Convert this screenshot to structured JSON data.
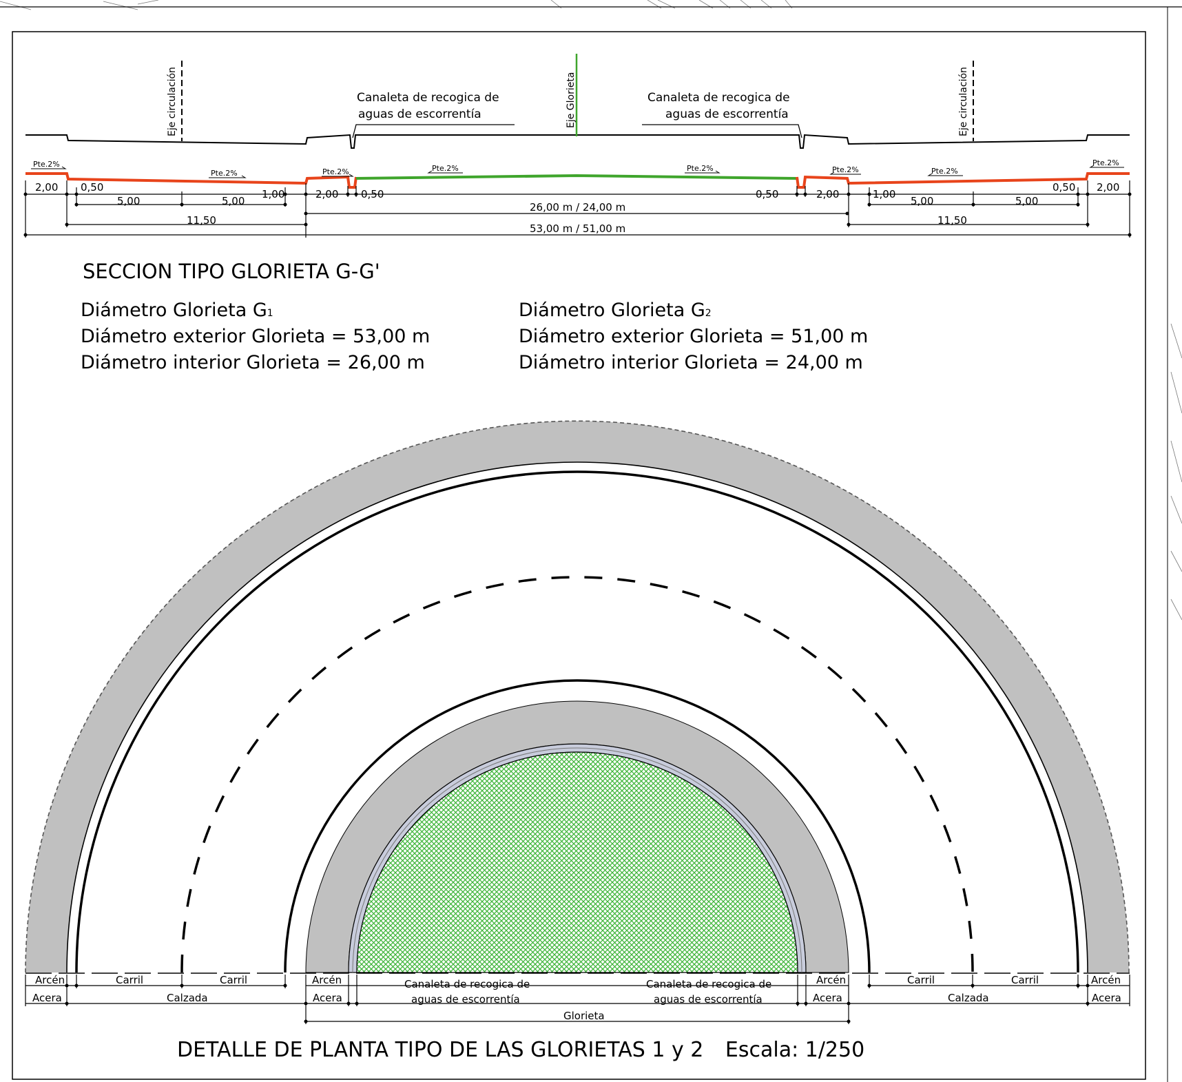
{
  "section": {
    "title": "SECCION TIPO GLORIETA G-G'",
    "labels": {
      "eje_circulacion_left": "Eje circulación",
      "eje_circulacion_right": "Eje circulación",
      "eje_glorieta": "Eje Glorieta",
      "canaleta_left_1": "Canaleta de recogica de",
      "canaleta_left_2": "aguas de escorrentía",
      "canaleta_right_1": "Canaleta de recogica de",
      "canaleta_right_2": "aguas de escorrentía"
    },
    "slope": "Pte.2%",
    "dims": {
      "d_2_00": "2,00",
      "d_0_50": "0,50",
      "d_5_00": "5,00",
      "d_1_00": "1,00",
      "d_11_50": "11,50",
      "d_inner": "26,00 m / 24,00 m",
      "d_outer": "53,00 m / 51,00 m"
    },
    "colors": {
      "outer_profile": "#e8441b",
      "inner_profile": "#3fa52c"
    }
  },
  "specs": {
    "g1": {
      "title": "Diámetro Glorieta G",
      "sub": "1",
      "exterior": "Diámetro exterior Glorieta = 53,00 m",
      "interior": "Diámetro interior Glorieta = 26,00 m"
    },
    "g2": {
      "title": "Diámetro Glorieta G",
      "sub": "2",
      "exterior": "Diámetro exterior Glorieta = 51,00 m",
      "interior": "Diámetro interior Glorieta = 24,00 m"
    }
  },
  "plan": {
    "labels": {
      "arcen": "Arcén",
      "acera": "Acera",
      "carril": "Carril",
      "calzada": "Calzada",
      "canaleta_1": "Canaleta de recogica de",
      "canaleta_2": "aguas de escorrentía",
      "glorieta": "Glorieta"
    },
    "colors": {
      "sidewalk": "#c0c0c0",
      "island_grass": "#3fb53a",
      "channel": "#c8ccdc"
    },
    "title": "DETALLE DE PLANTA TIPO DE LAS GLORIETAS 1 y 2",
    "scale": "Escala: 1/250"
  }
}
